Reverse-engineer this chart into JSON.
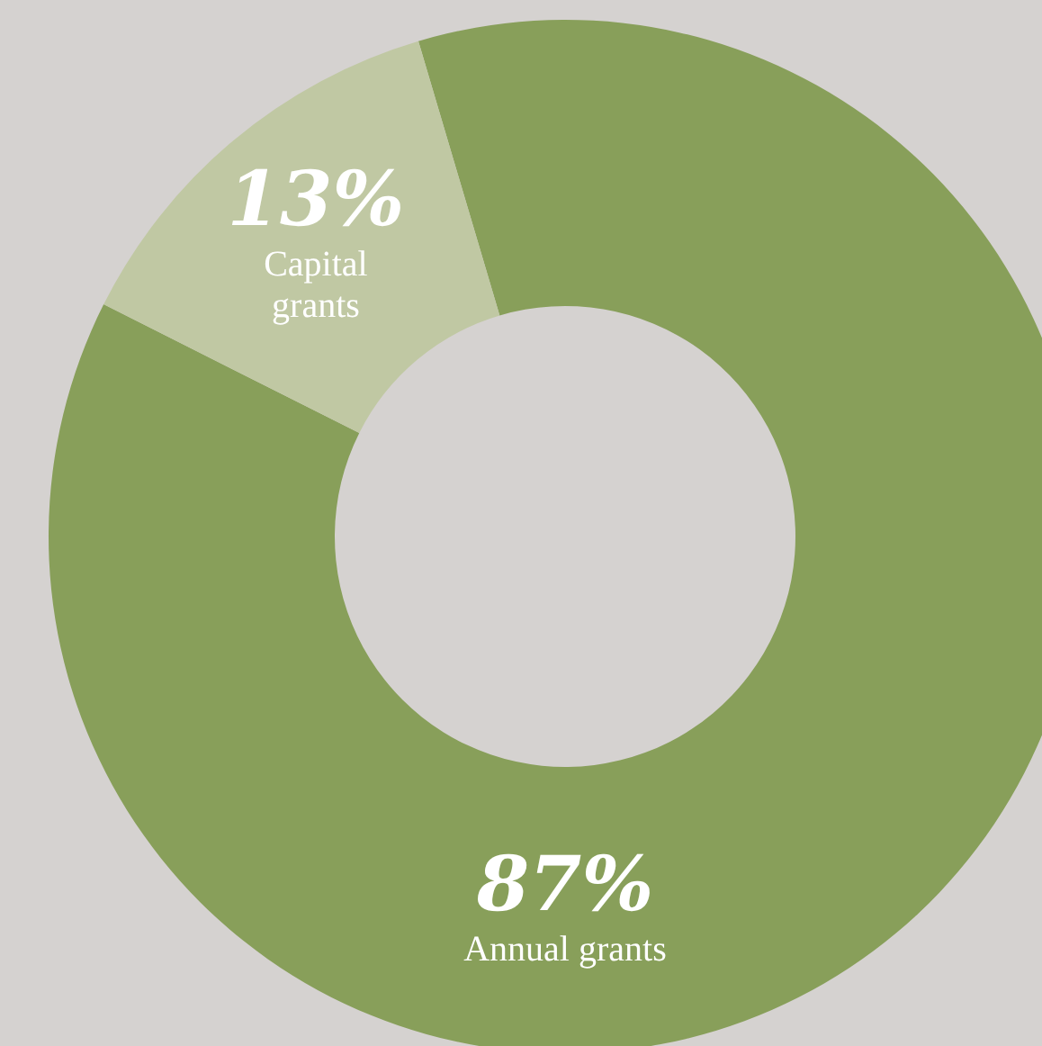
{
  "chart_data": {
    "type": "donut",
    "categories": [
      "Annual grants",
      "Capital grants"
    ],
    "values": [
      87,
      13
    ],
    "colors": [
      "#889f5a",
      "#c0c8a3"
    ],
    "value_labels": [
      "87%",
      "13%"
    ]
  }
}
